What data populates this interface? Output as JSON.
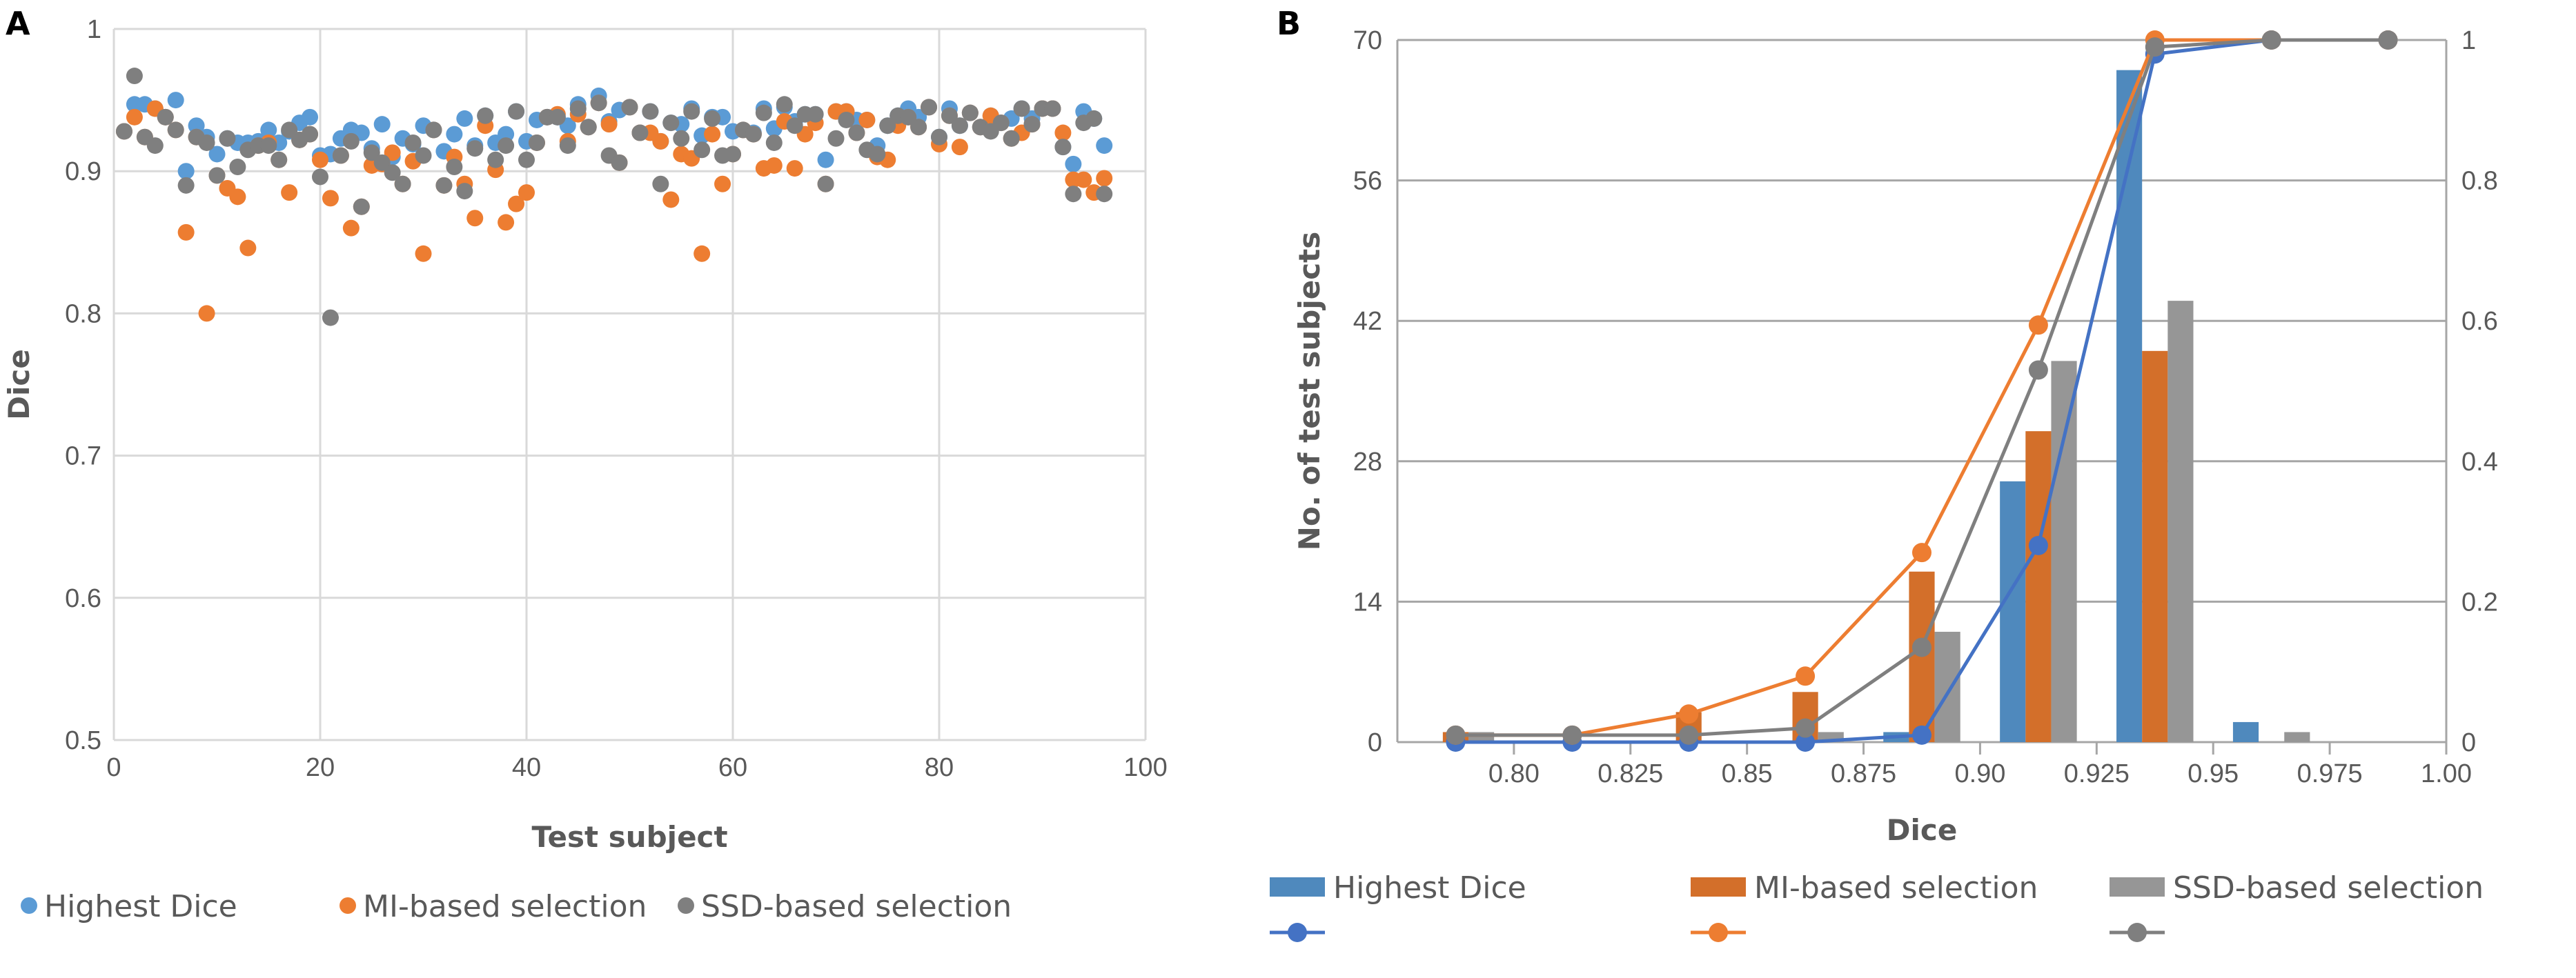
{
  "colors": {
    "highest": "#5B9BD5",
    "mi": "#ED7D31",
    "ssd": "#7F7F7F",
    "highest_bar": "#4F89BD",
    "mi_bar": "#D36F2A",
    "ssd_bar": "#969696",
    "highest_line": "#4472C4",
    "grid": "#D9D9D9",
    "grid_b": "#A6A6A6"
  },
  "chart_data": [
    {
      "panel": "A",
      "type": "scatter",
      "xlabel": "Test subject",
      "ylabel": "Dice",
      "xlim": [
        0,
        100
      ],
      "ylim": [
        0.5,
        1
      ],
      "xticks": [
        "0",
        "20",
        "40",
        "60",
        "80",
        "100"
      ],
      "yticks": [
        "0.5",
        "0.6",
        "0.7",
        "0.8",
        "0.9",
        "1"
      ],
      "grid": true,
      "legend": "bottom",
      "series": [
        {
          "name": "Highest Dice",
          "x_start": 1,
          "values": [
            0.928,
            0.947,
            0.947,
            0.944,
            0.938,
            0.95,
            0.9,
            0.932,
            0.924,
            0.912,
            0.923,
            0.92,
            0.92,
            0.921,
            0.929,
            0.92,
            0.928,
            0.934,
            0.938,
            0.911,
            0.912,
            0.923,
            0.929,
            0.927,
            0.916,
            0.933,
            0.91,
            0.923,
            0.919,
            0.932,
            0.929,
            0.914,
            0.926,
            0.937,
            0.918,
            0.939,
            0.92,
            0.926,
            0.942,
            0.921,
            0.936,
            0.938,
            0.938,
            0.932,
            0.947,
            0.931,
            0.953,
            0.935,
            0.943,
            0.945,
            0.927,
            0.942,
            0.921,
            0.934,
            0.933,
            0.944,
            0.925,
            0.938,
            0.938,
            0.928,
            0.929,
            0.927,
            0.944,
            0.93,
            0.945,
            0.935,
            0.94,
            0.94,
            0.908,
            0.942,
            0.942,
            0.936,
            0.936,
            0.918,
            0.932,
            0.939,
            0.944,
            0.938,
            0.945,
            0.924,
            0.944,
            0.932,
            0.941,
            0.931,
            0.939,
            0.934,
            0.937,
            0.944,
            0.937,
            0.944,
            0.944,
            0.917,
            0.905,
            0.942,
            0.937,
            0.918
          ]
        },
        {
          "name": "MI-based selection",
          "x_start": 1,
          "values": [
            0.928,
            0.938,
            0.924,
            0.944,
            0.938,
            0.929,
            0.857,
            0.924,
            0.8,
            0.897,
            0.888,
            0.882,
            0.846,
            0.918,
            0.92,
            0.908,
            0.885,
            0.922,
            0.926,
            0.908,
            0.881,
            0.911,
            0.86,
            0.875,
            0.904,
            0.905,
            0.913,
            0.891,
            0.907,
            0.842,
            0.929,
            0.89,
            0.91,
            0.891,
            0.867,
            0.932,
            0.901,
            0.864,
            0.877,
            0.885,
            0.92,
            0.938,
            0.94,
            0.921,
            0.94,
            0.931,
            0.948,
            0.933,
            0.906,
            0.945,
            0.927,
            0.927,
            0.921,
            0.88,
            0.912,
            0.909,
            0.842,
            0.926,
            0.891,
            0.912,
            0.929,
            0.926,
            0.902,
            0.904,
            0.935,
            0.902,
            0.926,
            0.934,
            0.891,
            0.942,
            0.942,
            0.927,
            0.936,
            0.91,
            0.908,
            0.932,
            0.938,
            0.931,
            0.945,
            0.919,
            0.939,
            0.917,
            0.941,
            0.931,
            0.939,
            0.934,
            0.923,
            0.927,
            0.933,
            0.944,
            0.944,
            0.927,
            0.894,
            0.894,
            0.885,
            0.895
          ]
        },
        {
          "name": "SSD-based selection",
          "x_start": 1,
          "values": [
            0.928,
            0.967,
            0.924,
            0.918,
            0.938,
            0.929,
            0.89,
            0.924,
            0.92,
            0.897,
            0.923,
            0.903,
            0.915,
            0.918,
            0.918,
            0.908,
            0.929,
            0.922,
            0.926,
            0.896,
            0.797,
            0.911,
            0.921,
            0.875,
            0.913,
            0.906,
            0.899,
            0.891,
            0.92,
            0.911,
            0.929,
            0.89,
            0.903,
            0.886,
            0.916,
            0.939,
            0.908,
            0.918,
            0.942,
            0.908,
            0.92,
            0.938,
            0.938,
            0.918,
            0.944,
            0.931,
            0.948,
            0.911,
            0.906,
            0.945,
            0.927,
            0.942,
            0.891,
            0.934,
            0.923,
            0.942,
            0.915,
            0.937,
            0.911,
            0.912,
            0.929,
            0.926,
            0.941,
            0.92,
            0.947,
            0.932,
            0.94,
            0.94,
            0.891,
            0.923,
            0.936,
            0.927,
            0.915,
            0.912,
            0.932,
            0.939,
            0.938,
            0.931,
            0.945,
            0.924,
            0.939,
            0.932,
            0.941,
            0.931,
            0.928,
            0.934,
            0.923,
            0.944,
            0.933,
            0.944,
            0.944,
            0.917,
            0.884,
            0.934,
            0.937,
            0.884
          ]
        }
      ]
    },
    {
      "panel": "B",
      "type": "bar+line",
      "xlabel": "Dice",
      "ylabel": "No. of test subjects",
      "xlim": [
        0.775,
        1.0
      ],
      "ylim": [
        0,
        70
      ],
      "y2lim": [
        0,
        1
      ],
      "xticks": [
        "0.80",
        "0.825",
        "0.85",
        "0.875",
        "0.90",
        "0.925",
        "0.95",
        "0.975",
        "1.00"
      ],
      "yticks": [
        "0",
        "14",
        "28",
        "42",
        "56",
        "70"
      ],
      "y2ticks": [
        "0",
        "0.2",
        "0.4",
        "0.6",
        "0.8",
        "1"
      ],
      "grid": true,
      "legend": "bottom",
      "bin_centers": [
        0.7875,
        0.8125,
        0.8375,
        0.8625,
        0.8875,
        0.9125,
        0.9375,
        0.9625,
        0.9875
      ],
      "bars": [
        {
          "name": "Highest Dice",
          "values": [
            0,
            0,
            0,
            0,
            1,
            26,
            67,
            2,
            0
          ]
        },
        {
          "name": "MI-based selection",
          "values": [
            1,
            0,
            3,
            5,
            17,
            31,
            39,
            0,
            0
          ]
        },
        {
          "name": "SSD-based selection",
          "values": [
            1,
            0,
            0,
            1,
            11,
            38,
            44,
            1,
            0
          ]
        }
      ],
      "lines": [
        {
          "values": [
            0,
            0,
            0,
            0,
            0.01,
            0.28,
            0.98,
            1,
            1
          ]
        },
        {
          "values": [
            0.01,
            0.01,
            0.04,
            0.094,
            0.27,
            0.594,
            1,
            1,
            1
          ]
        },
        {
          "values": [
            0.01,
            0.01,
            0.01,
            0.02,
            0.135,
            0.53,
            0.99,
            1,
            1
          ]
        }
      ]
    }
  ]
}
